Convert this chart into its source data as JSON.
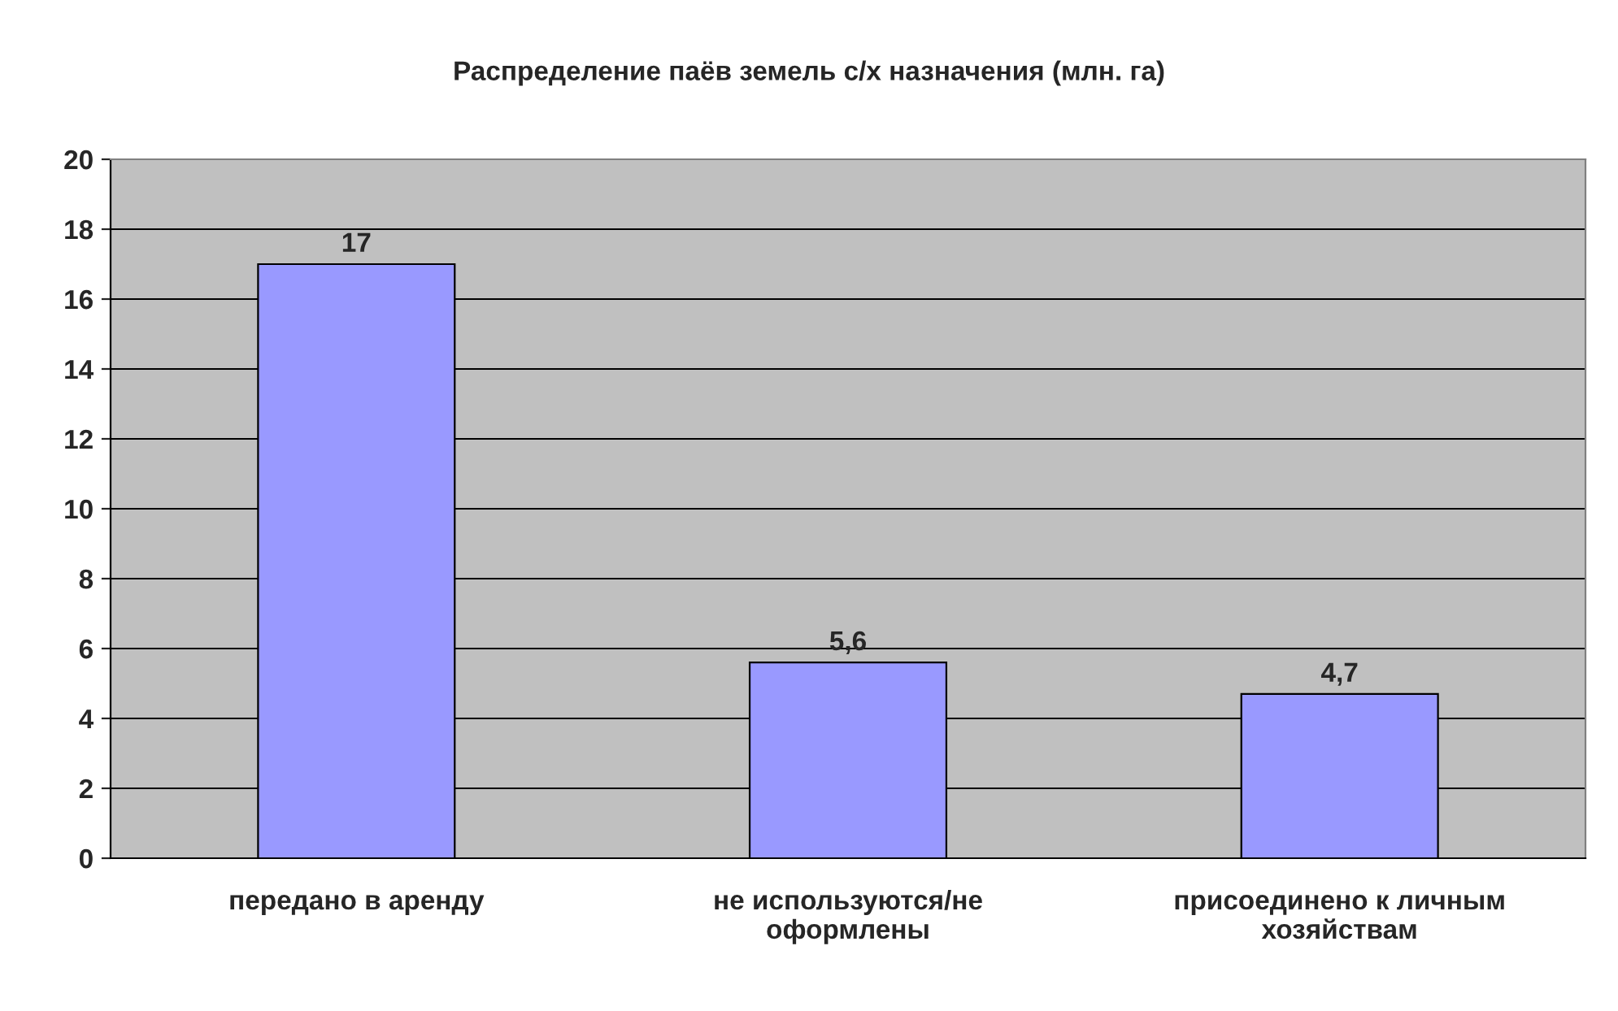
{
  "chart_data": {
    "type": "bar",
    "title": "Распределение паёв земель с/х назначения (млн. га)",
    "categories": [
      "передано в аренду",
      "не используются/не\nоформлены",
      "присоединено к личным\nхозяйствам"
    ],
    "values": [
      17,
      5.6,
      4.7
    ],
    "value_labels": [
      "17",
      "5,6",
      "4,7"
    ],
    "color": "#9999ff",
    "ylim": [
      0,
      20
    ],
    "yticks": [
      0,
      2,
      4,
      6,
      8,
      10,
      12,
      14,
      16,
      18,
      20
    ],
    "grid": "y"
  }
}
